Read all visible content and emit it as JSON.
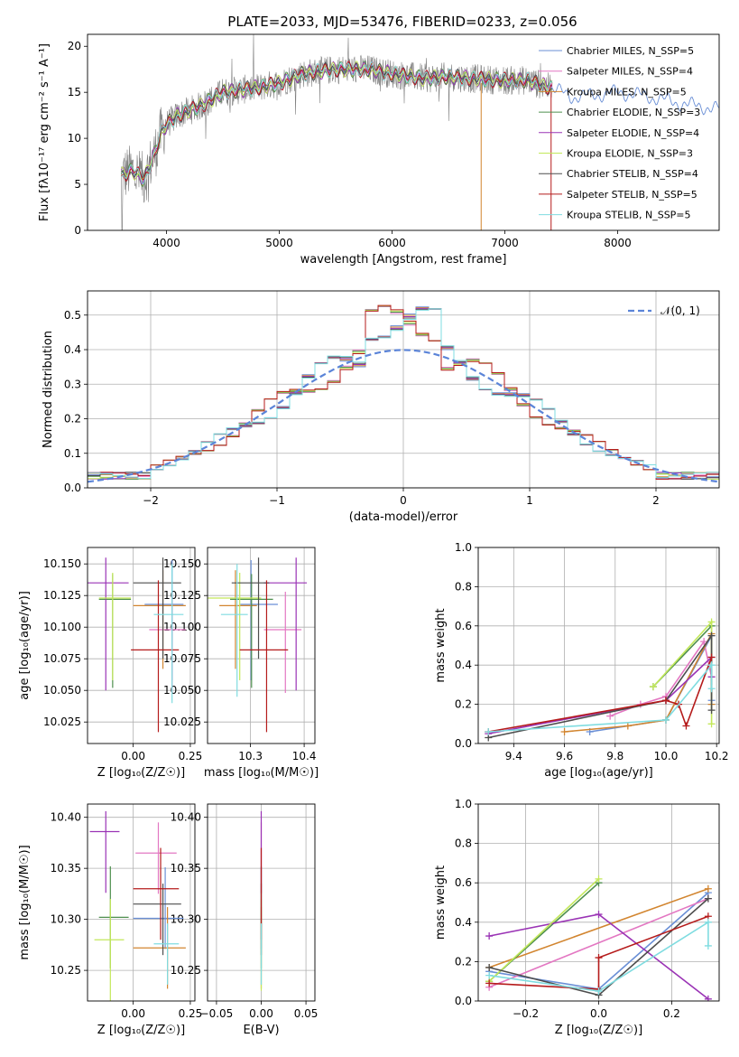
{
  "title": "PLATE=2033, MJD=53476, FIBERID=0233, z=0.056",
  "colors": {
    "chabrier_miles": "#6a8fd6",
    "salpeter_miles": "#e377c2",
    "kroupa_miles": "#d2852f",
    "chabrier_elodie": "#4e8f4e",
    "salpeter_elodie": "#9a33b5",
    "kroupa_elodie": "#c3e85a",
    "chabrier_stelib": "#4d4d4d",
    "salpeter_stelib": "#b51b1b",
    "kroupa_stelib": "#7fdce0",
    "data": "#808080"
  },
  "chart_data": [
    {
      "id": "spectrum",
      "type": "line",
      "title": "PLATE=2033, MJD=53476, FIBERID=0233, z=0.056",
      "xlabel": "wavelength [Angstrom, rest frame]",
      "ylabel": "Flux [fλ10⁻¹⁷ erg cm⁻² s⁻¹ A⁻¹]",
      "xlim": [
        3300,
        8900
      ],
      "ylim": [
        0,
        21.3
      ],
      "xticks": [
        4000,
        5000,
        6000,
        7000,
        8000
      ],
      "yticks": [
        0,
        5,
        10,
        15,
        20
      ],
      "grid": false,
      "legend_position": "top-right",
      "legend": [
        "Chabrier MILES, N_SSP=5",
        "Salpeter MILES, N_SSP=4",
        "Kroupa MILES, N_SSP=5",
        "Chabrier ELODIE, N_SSP=3",
        "Salpeter ELODIE, N_SSP=4",
        "Kroupa ELODIE, N_SSP=3",
        "Chabrier STELIB, N_SSP=4",
        "Salpeter STELIB, N_SSP=5",
        "Kroupa STELIB, N_SSP=5"
      ],
      "continuum": {
        "x": [
          3600,
          3700,
          3800,
          3900,
          3950,
          4000,
          4100,
          4300,
          4500,
          4800,
          5000,
          5200,
          5500,
          5800,
          6000,
          6300,
          6500,
          6700,
          7000,
          7200,
          7400,
          7600,
          7800,
          8000,
          8200,
          8400,
          8600,
          8900
        ],
        "y": [
          6,
          6.5,
          5.5,
          8.5,
          10.5,
          11.5,
          12.5,
          13.5,
          15,
          15.5,
          16,
          17,
          17.5,
          17.5,
          17,
          16.5,
          16.7,
          16.5,
          16.3,
          16.3,
          15.5,
          14.5,
          14.7,
          15,
          14.7,
          14.2,
          13.7,
          13.2
        ]
      }
    },
    {
      "id": "residuals",
      "type": "area",
      "xlabel": "(data-model)/error",
      "ylabel": "Normed distribution",
      "xlim": [
        -2.5,
        2.5
      ],
      "ylim": [
        0,
        0.57
      ],
      "xticks": [
        -2,
        -1,
        0,
        1,
        2
      ],
      "yticks": [
        0.0,
        0.1,
        0.2,
        0.3,
        0.4,
        0.5
      ],
      "grid": true,
      "legend_position": "top-right",
      "legend": [
        "𝒩(0, 1)"
      ],
      "bin_width": 0.1
    },
    {
      "id": "age-vs-Z",
      "type": "scatter",
      "xlabel": "Z [log₁₀(Z/Z☉)]",
      "ylabel": "age  [log₁₀(age/yr)]",
      "xlim": [
        -0.2,
        0.27
      ],
      "ylim": [
        10.008,
        10.163
      ],
      "xticks": [
        0.0,
        0.25
      ],
      "yticks": [
        10.025,
        10.05,
        10.075,
        10.1,
        10.125,
        10.15
      ],
      "grid": true,
      "points": [
        {
          "x": 0.17,
          "y": 10.118,
          "xerr": [
            0.12,
            0.05
          ],
          "yerr": [
            0.06,
            0.035
          ],
          "model": "chabrier_miles"
        },
        {
          "x": 0.17,
          "y": 10.098,
          "xerr": [
            0.1,
            0.06
          ],
          "yerr": [
            0.05,
            0.03
          ],
          "model": "salpeter_miles"
        },
        {
          "x": 0.13,
          "y": 10.117,
          "xerr": [
            0.13,
            0.1
          ],
          "yerr": [
            0.05,
            0.028
          ],
          "model": "kroupa_miles"
        },
        {
          "x": -0.09,
          "y": 10.122,
          "xerr": [
            0.06,
            0.08
          ],
          "yerr": [
            0.07,
            0.02
          ],
          "model": "chabrier_elodie"
        },
        {
          "x": -0.12,
          "y": 10.135,
          "xerr": [
            0.08,
            0.1
          ],
          "yerr": [
            0.085,
            0.02
          ],
          "model": "salpeter_elodie"
        },
        {
          "x": -0.09,
          "y": 10.123,
          "xerr": [
            0.06,
            0.08
          ],
          "yerr": [
            0.065,
            0.02
          ],
          "model": "kroupa_elodie"
        },
        {
          "x": 0.13,
          "y": 10.135,
          "xerr": [
            0.13,
            0.08
          ],
          "yerr": [
            0.06,
            0.02
          ],
          "model": "chabrier_stelib"
        },
        {
          "x": 0.11,
          "y": 10.082,
          "xerr": [
            0.12,
            0.09
          ],
          "yerr": [
            0.065,
            0.055
          ],
          "model": "salpeter_stelib"
        },
        {
          "x": 0.17,
          "y": 10.11,
          "xerr": [
            0.08,
            0.05
          ],
          "yerr": [
            0.07,
            0.04
          ],
          "model": "kroupa_stelib"
        }
      ]
    },
    {
      "id": "age-vs-mass",
      "type": "scatter",
      "xlabel": "mass [log₁₀(M/M☉)]",
      "ylabel": "",
      "xlim": [
        10.22,
        10.42
      ],
      "ylim": [
        10.008,
        10.163
      ],
      "xticks": [
        10.3,
        10.4
      ],
      "yticks": [
        10.025,
        10.05,
        10.075,
        10.1,
        10.125,
        10.15
      ],
      "grid": true,
      "points": [
        {
          "x": 10.301,
          "y": 10.118,
          "xerr": [
            0.02,
            0.05
          ],
          "yerr": [
            0.06,
            0.035
          ],
          "model": "chabrier_miles"
        },
        {
          "x": 10.365,
          "y": 10.098,
          "xerr": [
            0.04,
            0.03
          ],
          "yerr": [
            0.05,
            0.03
          ],
          "model": "salpeter_miles"
        },
        {
          "x": 10.272,
          "y": 10.117,
          "xerr": [
            0.03,
            0.04
          ],
          "yerr": [
            0.05,
            0.028
          ],
          "model": "kroupa_miles"
        },
        {
          "x": 10.302,
          "y": 10.122,
          "xerr": [
            0.04,
            0.04
          ],
          "yerr": [
            0.07,
            0.02
          ],
          "model": "chabrier_elodie"
        },
        {
          "x": 10.385,
          "y": 10.135,
          "xerr": [
            0.06,
            0.02
          ],
          "yerr": [
            0.085,
            0.02
          ],
          "model": "salpeter_elodie"
        },
        {
          "x": 10.28,
          "y": 10.123,
          "xerr": [
            0.06,
            0.04
          ],
          "yerr": [
            0.065,
            0.02
          ],
          "model": "kroupa_elodie"
        },
        {
          "x": 10.315,
          "y": 10.135,
          "xerr": [
            0.05,
            0.02
          ],
          "yerr": [
            0.06,
            0.02
          ],
          "model": "chabrier_stelib"
        },
        {
          "x": 10.33,
          "y": 10.082,
          "xerr": [
            0.05,
            0.04
          ],
          "yerr": [
            0.065,
            0.055
          ],
          "model": "salpeter_stelib"
        },
        {
          "x": 10.275,
          "y": 10.11,
          "xerr": [
            0.03,
            0.02
          ],
          "yerr": [
            0.065,
            0.04
          ],
          "model": "kroupa_stelib"
        }
      ]
    },
    {
      "id": "mass-vs-Z",
      "type": "scatter",
      "xlabel": "Z [log₁₀(Z/Z☉)]",
      "ylabel": "mass [log₁₀(M/M☉)]",
      "xlim": [
        -0.2,
        0.27
      ],
      "ylim": [
        10.22,
        10.413
      ],
      "xticks": [
        0.0,
        0.25
      ],
      "yticks": [
        10.25,
        10.3,
        10.35,
        10.4
      ],
      "grid": true,
      "points": [
        {
          "x": 0.14,
          "y": 10.301,
          "xerr": [
            0.14,
            0.08
          ],
          "yerr": [
            0.03,
            0.05
          ],
          "model": "chabrier_miles"
        },
        {
          "x": 0.11,
          "y": 10.365,
          "xerr": [
            0.1,
            0.08
          ],
          "yerr": [
            0.04,
            0.03
          ],
          "model": "salpeter_miles"
        },
        {
          "x": 0.15,
          "y": 10.272,
          "xerr": [
            0.15,
            0.08
          ],
          "yerr": [
            0.04,
            0.04
          ],
          "model": "kroupa_miles"
        },
        {
          "x": -0.1,
          "y": 10.302,
          "xerr": [
            0.05,
            0.08
          ],
          "yerr": [
            0.05,
            0.05
          ],
          "model": "chabrier_elodie"
        },
        {
          "x": -0.12,
          "y": 10.386,
          "xerr": [
            0.07,
            0.06
          ],
          "yerr": [
            0.06,
            0.02
          ],
          "model": "salpeter_elodie"
        },
        {
          "x": -0.1,
          "y": 10.28,
          "xerr": [
            0.07,
            0.06
          ],
          "yerr": [
            0.06,
            0.04
          ],
          "model": "kroupa_elodie"
        },
        {
          "x": 0.13,
          "y": 10.315,
          "xerr": [
            0.13,
            0.08
          ],
          "yerr": [
            0.05,
            0.02
          ],
          "model": "chabrier_stelib"
        },
        {
          "x": 0.12,
          "y": 10.33,
          "xerr": [
            0.12,
            0.08
          ],
          "yerr": [
            0.05,
            0.04
          ],
          "model": "salpeter_stelib"
        },
        {
          "x": 0.15,
          "y": 10.276,
          "xerr": [
            0.06,
            0.05
          ],
          "yerr": [
            0.04,
            0.02
          ],
          "model": "kroupa_stelib"
        }
      ]
    },
    {
      "id": "mass-vs-EBV",
      "type": "scatter",
      "xlabel": "E(B-V)",
      "ylabel": "",
      "xlim": [
        -0.06,
        0.06
      ],
      "ylim": [
        10.22,
        10.413
      ],
      "xticks": [
        -0.05,
        0.0,
        0.05
      ],
      "yticks": [
        10.25,
        10.3,
        10.35,
        10.4
      ],
      "grid": true,
      "points": [
        {
          "x": 0,
          "y": 10.301,
          "yerr": [
            0.03,
            0.05
          ],
          "model": "chabrier_miles"
        },
        {
          "x": 0,
          "y": 10.365,
          "yerr": [
            0.04,
            0.03
          ],
          "model": "salpeter_miles"
        },
        {
          "x": 0,
          "y": 10.272,
          "yerr": [
            0.04,
            0.04
          ],
          "model": "kroupa_miles"
        },
        {
          "x": 0,
          "y": 10.302,
          "yerr": [
            0.05,
            0.05
          ],
          "model": "chabrier_elodie"
        },
        {
          "x": 0,
          "y": 10.386,
          "yerr": [
            0.06,
            0.02
          ],
          "model": "salpeter_elodie"
        },
        {
          "x": 0,
          "y": 10.28,
          "yerr": [
            0.05,
            0.04
          ],
          "model": "kroupa_elodie"
        },
        {
          "x": 0,
          "y": 10.315,
          "yerr": [
            0.05,
            0.02
          ],
          "model": "chabrier_stelib"
        },
        {
          "x": 0,
          "y": 10.33,
          "yerr": [
            0.05,
            0.04
          ],
          "model": "salpeter_stelib"
        },
        {
          "x": 0,
          "y": 10.276,
          "yerr": [
            0.04,
            0.02
          ],
          "model": "kroupa_stelib"
        }
      ]
    },
    {
      "id": "weight-vs-age",
      "type": "line",
      "xlabel": "age  [log₁₀(age/yr)]",
      "ylabel": "mass weight",
      "xlim": [
        9.26,
        10.21
      ],
      "ylim": [
        0,
        1
      ],
      "xticks": [
        9.4,
        9.6,
        9.8,
        10.0,
        10.2
      ],
      "yticks": [
        0.0,
        0.2,
        0.4,
        0.6,
        0.8,
        1.0
      ],
      "grid": true,
      "series": [
        {
          "model": "chabrier_miles",
          "x": [
            9.7,
            10.0,
            10.18,
            10.18
          ],
          "y": [
            0.06,
            0.12,
            0.55,
            0.22
          ]
        },
        {
          "model": "salpeter_miles",
          "x": [
            9.78,
            9.9,
            10.0,
            10.15,
            10.18
          ],
          "y": [
            0.14,
            0.2,
            0.24,
            0.52,
            0.34
          ]
        },
        {
          "model": "kroupa_miles",
          "x": [
            9.6,
            9.85,
            10.0,
            10.18,
            10.18
          ],
          "y": [
            0.06,
            0.09,
            0.12,
            0.56,
            0.2
          ]
        },
        {
          "model": "chabrier_elodie",
          "x": [
            9.95,
            10.18
          ],
          "y": [
            0.29,
            0.6
          ]
        },
        {
          "model": "salpeter_elodie",
          "x": [
            9.3,
            10.0,
            10.18,
            10.18
          ],
          "y": [
            0.05,
            0.22,
            0.44,
            0.34
          ]
        },
        {
          "model": "kroupa_elodie",
          "x": [
            9.95,
            10.18,
            10.18
          ],
          "y": [
            0.29,
            0.62,
            0.1
          ]
        },
        {
          "model": "chabrier_stelib",
          "x": [
            9.3,
            10.0,
            10.18,
            10.18
          ],
          "y": [
            0.03,
            0.22,
            0.55,
            0.17
          ]
        },
        {
          "model": "salpeter_stelib",
          "x": [
            9.3,
            10.0,
            10.05,
            10.08,
            10.18
          ],
          "y": [
            0.06,
            0.22,
            0.2,
            0.09,
            0.44
          ]
        },
        {
          "model": "kroupa_stelib",
          "x": [
            9.3,
            10.0,
            10.18,
            10.18
          ],
          "y": [
            0.06,
            0.12,
            0.4,
            0.28
          ]
        }
      ]
    },
    {
      "id": "weight-vs-Z",
      "type": "line",
      "xlabel": "Z [log₁₀(Z/Z☉)]",
      "ylabel": "mass weight",
      "xlim": [
        -0.33,
        0.33
      ],
      "ylim": [
        0,
        1
      ],
      "xticks": [
        -0.2,
        0.0,
        0.2
      ],
      "yticks": [
        0.0,
        0.2,
        0.4,
        0.6,
        0.8,
        1.0
      ],
      "grid": true,
      "series": [
        {
          "model": "chabrier_miles",
          "x": [
            -0.3,
            0.0,
            0.3
          ],
          "y": [
            0.15,
            0.06,
            0.55
          ]
        },
        {
          "model": "salpeter_miles",
          "x": [
            -0.3,
            0.3
          ],
          "y": [
            0.07,
            0.52
          ]
        },
        {
          "model": "kroupa_miles",
          "x": [
            -0.3,
            0.3
          ],
          "y": [
            0.17,
            0.57
          ]
        },
        {
          "model": "chabrier_elodie",
          "x": [
            -0.3,
            0.0
          ],
          "y": [
            0.1,
            0.6
          ]
        },
        {
          "model": "salpeter_elodie",
          "x": [
            -0.3,
            0.0,
            0.3
          ],
          "y": [
            0.33,
            0.44,
            0.01
          ]
        },
        {
          "model": "kroupa_elodie",
          "x": [
            -0.3,
            0.0
          ],
          "y": [
            0.1,
            0.62
          ]
        },
        {
          "model": "chabrier_stelib",
          "x": [
            -0.3,
            0.0,
            0.3
          ],
          "y": [
            0.17,
            0.03,
            0.52
          ]
        },
        {
          "model": "salpeter_stelib",
          "x": [
            -0.3,
            0.0,
            0.0,
            0.3
          ],
          "y": [
            0.09,
            0.06,
            0.22,
            0.43
          ]
        },
        {
          "model": "kroupa_stelib",
          "x": [
            -0.3,
            0.0,
            0.3,
            0.3
          ],
          "y": [
            0.13,
            0.05,
            0.4,
            0.28
          ]
        }
      ]
    }
  ]
}
